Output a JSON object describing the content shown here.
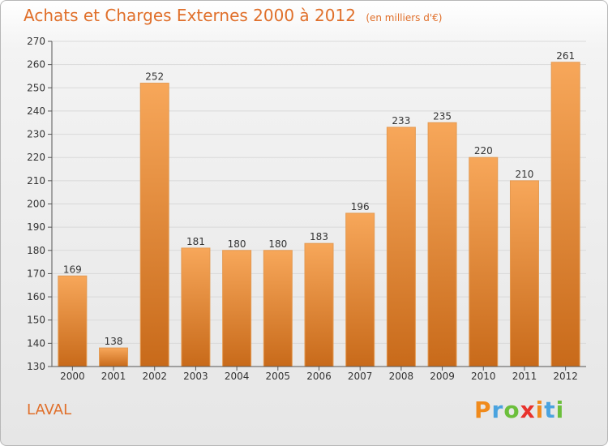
{
  "header": {
    "title": "Achats et Charges Externes 2000 à 2012",
    "subtitle": "(en milliers d'€)"
  },
  "footer": {
    "commune": "LAVAL",
    "logo_text": "Proxiti",
    "logo_colors": [
      "#f08a1c",
      "#4aa3df",
      "#6cbf3c",
      "#e8322c",
      "#f08a1c",
      "#4aa3df",
      "#6cbf3c"
    ]
  },
  "colors": {
    "bar_light": "#f7a75a",
    "bar_dark": "#c86a1a",
    "accent": "#e06f2a",
    "grid": "#d9d9d9"
  },
  "chart_data": {
    "type": "bar",
    "title": "Achats et Charges Externes 2000 à 2012",
    "subtitle": "(en milliers d'€)",
    "categories": [
      "2000",
      "2001",
      "2002",
      "2003",
      "2004",
      "2005",
      "2006",
      "2007",
      "2008",
      "2009",
      "2010",
      "2011",
      "2012"
    ],
    "values": [
      169,
      138,
      252,
      181,
      180,
      180,
      183,
      196,
      233,
      235,
      220,
      210,
      261
    ],
    "ylim": [
      130,
      270
    ],
    "yticks": [
      130,
      140,
      150,
      160,
      170,
      180,
      190,
      200,
      210,
      220,
      230,
      240,
      250,
      260,
      270
    ],
    "grid": true,
    "data_labels": true
  }
}
